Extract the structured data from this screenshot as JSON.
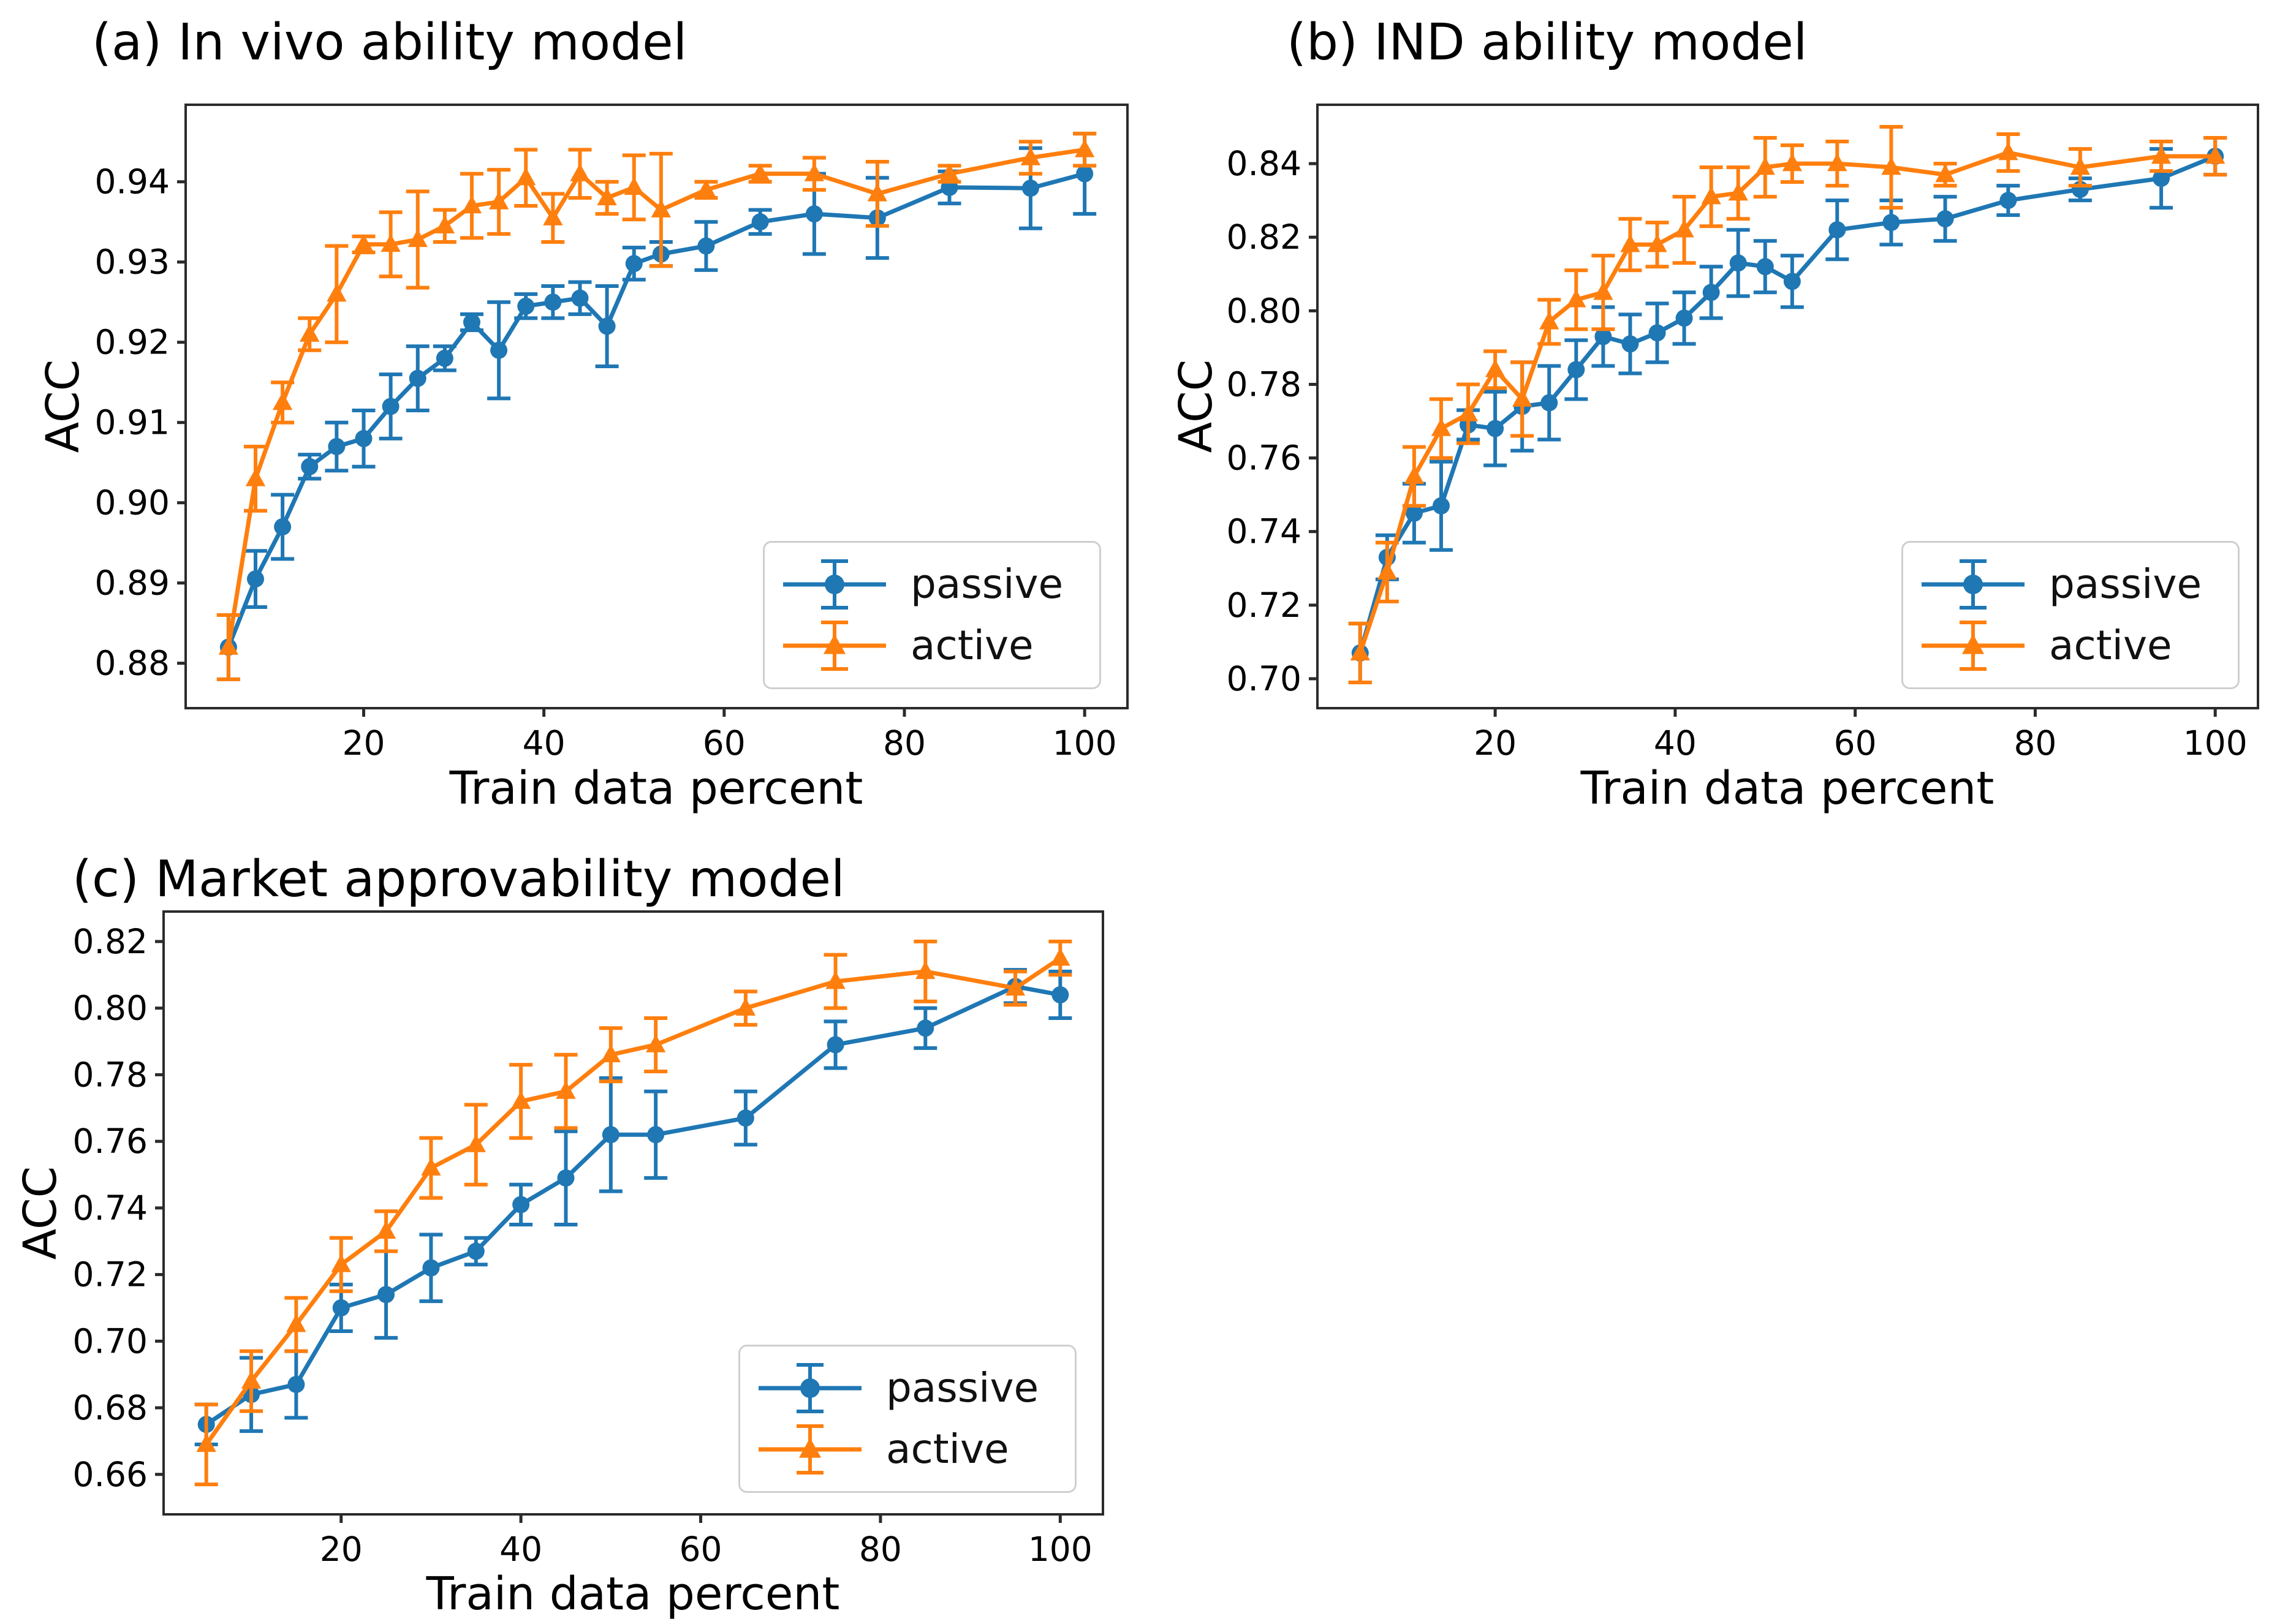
{
  "figure": {
    "background": "#ffffff",
    "text_color": "#000000",
    "spine_color": "#2b2b2b"
  },
  "chart_data": [
    {
      "id": "a",
      "type": "line",
      "title": "(a) In vivo ability model",
      "xlabel": "Train data percent",
      "ylabel": "ACC",
      "xlim": [
        0.25,
        104.75
      ],
      "ylim": [
        0.8744,
        0.9496
      ],
      "xticks": [
        20,
        40,
        60,
        80,
        100
      ],
      "yticks": [
        0.88,
        0.89,
        0.9,
        0.91,
        0.92,
        0.93,
        0.94
      ],
      "grid": false,
      "legend_position": "lower right",
      "x": [
        5,
        8,
        11,
        14,
        17,
        20,
        23,
        26,
        29,
        32,
        35,
        38,
        41,
        44,
        47,
        50,
        53,
        58,
        64,
        70,
        77,
        85,
        94,
        100
      ],
      "series": [
        {
          "name": "passive",
          "color": "#1f77b4",
          "marker": "circle",
          "values": [
            0.882,
            0.8905,
            0.897,
            0.9045,
            0.907,
            0.908,
            0.912,
            0.9155,
            0.918,
            0.9225,
            0.919,
            0.9245,
            0.925,
            0.9255,
            0.922,
            0.9298,
            0.931,
            0.932,
            0.935,
            0.936,
            0.9355,
            0.9393,
            0.9392,
            0.941
          ],
          "errors": [
            0.004,
            0.0035,
            0.004,
            0.0015,
            0.003,
            0.0035,
            0.004,
            0.004,
            0.0015,
            0.001,
            0.006,
            0.0015,
            0.002,
            0.002,
            0.005,
            0.002,
            0.0015,
            0.003,
            0.0015,
            0.005,
            0.005,
            0.002,
            0.005,
            0.005
          ]
        },
        {
          "name": "active",
          "color": "#ff7f0e",
          "marker": "triangle",
          "values": [
            0.882,
            0.903,
            0.9125,
            0.921,
            0.926,
            0.9322,
            0.9322,
            0.9328,
            0.9345,
            0.937,
            0.9375,
            0.9405,
            0.9355,
            0.941,
            0.938,
            0.9393,
            0.9365,
            0.939,
            0.941,
            0.941,
            0.9385,
            0.941,
            0.943,
            0.944
          ],
          "errors": [
            0.004,
            0.004,
            0.0025,
            0.002,
            0.006,
            0.001,
            0.004,
            0.006,
            0.002,
            0.004,
            0.004,
            0.0035,
            0.003,
            0.003,
            0.002,
            0.004,
            0.007,
            0.001,
            0.001,
            0.002,
            0.004,
            0.001,
            0.002,
            0.002
          ]
        }
      ]
    },
    {
      "id": "b",
      "type": "line",
      "title": "(b) IND ability model",
      "xlabel": "Train data percent",
      "ylabel": "ACC",
      "xlim": [
        0.25,
        104.75
      ],
      "ylim": [
        0.692,
        0.856
      ],
      "xticks": [
        20,
        40,
        60,
        80,
        100
      ],
      "yticks": [
        0.7,
        0.72,
        0.74,
        0.76,
        0.78,
        0.8,
        0.82,
        0.84
      ],
      "grid": false,
      "legend_position": "lower right",
      "x": [
        5,
        8,
        11,
        14,
        17,
        20,
        23,
        26,
        29,
        32,
        35,
        38,
        41,
        44,
        47,
        50,
        53,
        58,
        64,
        70,
        77,
        85,
        94,
        100
      ],
      "series": [
        {
          "name": "passive",
          "color": "#1f77b4",
          "marker": "circle",
          "values": [
            0.707,
            0.733,
            0.745,
            0.747,
            0.769,
            0.768,
            0.774,
            0.775,
            0.784,
            0.793,
            0.791,
            0.794,
            0.798,
            0.805,
            0.813,
            0.812,
            0.808,
            0.822,
            0.824,
            0.825,
            0.83,
            0.833,
            0.836,
            0.842
          ],
          "errors": [
            0.008,
            0.006,
            0.008,
            0.012,
            0.004,
            0.01,
            0.012,
            0.01,
            0.008,
            0.008,
            0.008,
            0.008,
            0.007,
            0.007,
            0.009,
            0.007,
            0.007,
            0.008,
            0.006,
            0.006,
            0.004,
            0.003,
            0.008,
            0.005
          ]
        },
        {
          "name": "active",
          "color": "#ff7f0e",
          "marker": "triangle",
          "values": [
            0.707,
            0.729,
            0.755,
            0.768,
            0.772,
            0.784,
            0.776,
            0.797,
            0.803,
            0.805,
            0.818,
            0.818,
            0.822,
            0.831,
            0.832,
            0.839,
            0.84,
            0.84,
            0.839,
            0.837,
            0.843,
            0.839,
            0.842,
            0.842
          ],
          "errors": [
            0.008,
            0.008,
            0.008,
            0.008,
            0.008,
            0.005,
            0.01,
            0.006,
            0.008,
            0.01,
            0.007,
            0.006,
            0.009,
            0.008,
            0.007,
            0.008,
            0.005,
            0.006,
            0.011,
            0.003,
            0.005,
            0.005,
            0.004,
            0.005
          ]
        }
      ]
    },
    {
      "id": "c",
      "type": "line",
      "title": "(c) Market approvability model",
      "xlabel": "Train data percent",
      "ylabel": "ACC",
      "xlim": [
        0.25,
        104.75
      ],
      "ylim": [
        0.648,
        0.829
      ],
      "xticks": [
        20,
        40,
        60,
        80,
        100
      ],
      "yticks": [
        0.66,
        0.68,
        0.7,
        0.72,
        0.74,
        0.76,
        0.78,
        0.8,
        0.82
      ],
      "grid": false,
      "legend_position": "lower right",
      "x": [
        5,
        10,
        15,
        20,
        25,
        30,
        35,
        40,
        45,
        50,
        55,
        65,
        75,
        85,
        95,
        100
      ],
      "series": [
        {
          "name": "passive",
          "color": "#1f77b4",
          "marker": "circle",
          "values": [
            0.675,
            0.684,
            0.687,
            0.71,
            0.714,
            0.722,
            0.727,
            0.741,
            0.749,
            0.762,
            0.762,
            0.767,
            0.789,
            0.794,
            0.8065,
            0.804
          ],
          "errors": [
            0.006,
            0.011,
            0.01,
            0.007,
            0.013,
            0.01,
            0.004,
            0.006,
            0.014,
            0.017,
            0.013,
            0.008,
            0.007,
            0.006,
            0.005,
            0.007
          ]
        },
        {
          "name": "active",
          "color": "#ff7f0e",
          "marker": "triangle",
          "values": [
            0.669,
            0.688,
            0.705,
            0.723,
            0.733,
            0.752,
            0.759,
            0.772,
            0.775,
            0.786,
            0.789,
            0.8,
            0.808,
            0.811,
            0.806,
            0.815
          ],
          "errors": [
            0.012,
            0.009,
            0.008,
            0.008,
            0.006,
            0.009,
            0.012,
            0.011,
            0.011,
            0.008,
            0.008,
            0.005,
            0.008,
            0.009,
            0.005,
            0.005
          ]
        }
      ]
    }
  ]
}
